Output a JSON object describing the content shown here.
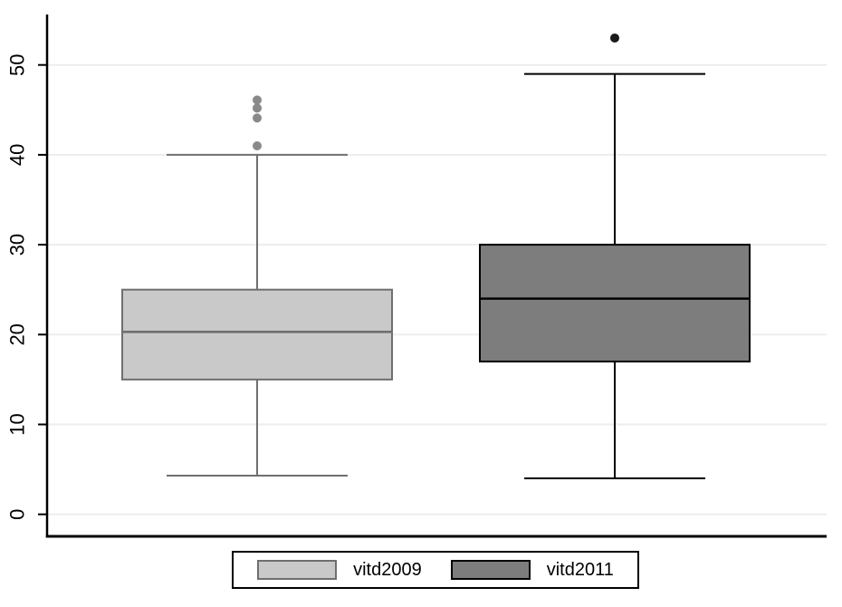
{
  "chart_data": {
    "type": "box",
    "title": "",
    "xlabel": "",
    "ylabel": "",
    "yticks": [
      0,
      10,
      20,
      30,
      40,
      50
    ],
    "ylim": [
      -2.4,
      55.6
    ],
    "grid": true,
    "legend_position": "bottom",
    "series": [
      {
        "name": "vitd2009",
        "whisker_low": 4.3,
        "q1": 15,
        "median": 20.3,
        "q3": 25,
        "whisker_high": 40,
        "outliers": [
          41,
          44.1,
          45.2,
          46.1
        ],
        "fill": "#c9c9c9",
        "stroke": "#6f6f6f",
        "marker_color": "#898989"
      },
      {
        "name": "vitd2011",
        "whisker_low": 4,
        "q1": 17,
        "median": 24,
        "q3": 30,
        "whisker_high": 49,
        "outliers": [
          53
        ],
        "fill": "#7d7d7d",
        "stroke": "#000000",
        "marker_color": "#1a1a1a"
      }
    ]
  },
  "legend": {
    "items": [
      {
        "label": "vitd2009"
      },
      {
        "label": "vitd2011"
      }
    ]
  },
  "colors": {
    "background": "#ffffff",
    "gridline": "#e9eef1",
    "axis": "#000000",
    "tick_label": "#000000"
  }
}
